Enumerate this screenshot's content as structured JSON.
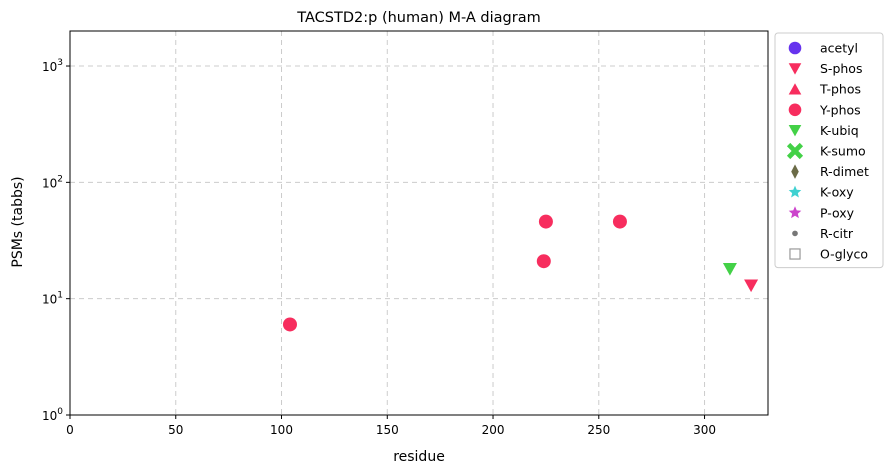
{
  "chart_data": {
    "type": "scatter",
    "title": "TACSTD2:p (human) M-A diagram",
    "xlabel": "residue",
    "ylabel": "PSMs (tabbs)",
    "xlim": [
      0,
      330
    ],
    "ylim": [
      1,
      2000
    ],
    "yscale": "log",
    "grid": true,
    "legend_position": "outside-right",
    "x_ticks": [
      0,
      50,
      100,
      150,
      200,
      250,
      300
    ],
    "y_ticks": [
      {
        "value": 1,
        "base": "10",
        "exp": "0"
      },
      {
        "value": 10,
        "base": "10",
        "exp": "1"
      },
      {
        "value": 100,
        "base": "10",
        "exp": "2"
      },
      {
        "value": 1000,
        "base": "10",
        "exp": "3"
      }
    ],
    "series": [
      {
        "name": "acetyl",
        "marker": "circle",
        "color": "#6633ee",
        "points": []
      },
      {
        "name": "S-phos",
        "marker": "triangle-down",
        "color": "#f72d5e",
        "points": [
          {
            "x": 322,
            "y": 13
          }
        ]
      },
      {
        "name": "T-phos",
        "marker": "triangle-up",
        "color": "#f72d5e",
        "points": []
      },
      {
        "name": "Y-phos",
        "marker": "circle",
        "color": "#f72d5e",
        "points": [
          {
            "x": 104,
            "y": 6
          },
          {
            "x": 224,
            "y": 21
          },
          {
            "x": 225,
            "y": 46
          },
          {
            "x": 260,
            "y": 46
          }
        ]
      },
      {
        "name": "K-ubiq",
        "marker": "triangle-down",
        "color": "#43d147",
        "points": [
          {
            "x": 312,
            "y": 18
          }
        ]
      },
      {
        "name": "K-sumo",
        "marker": "x-thick",
        "color": "#43d147",
        "points": []
      },
      {
        "name": "R-dimet",
        "marker": "diamond-thin",
        "color": "#6b6b47",
        "points": []
      },
      {
        "name": "K-oxy",
        "marker": "star",
        "color": "#3fd1d1",
        "points": []
      },
      {
        "name": "P-oxy",
        "marker": "star",
        "color": "#cc44cc",
        "points": []
      },
      {
        "name": "R-citr",
        "marker": "dot",
        "color": "#777777",
        "points": []
      },
      {
        "name": "O-glyco",
        "marker": "square-open",
        "color": "#999999",
        "points": []
      }
    ]
  }
}
